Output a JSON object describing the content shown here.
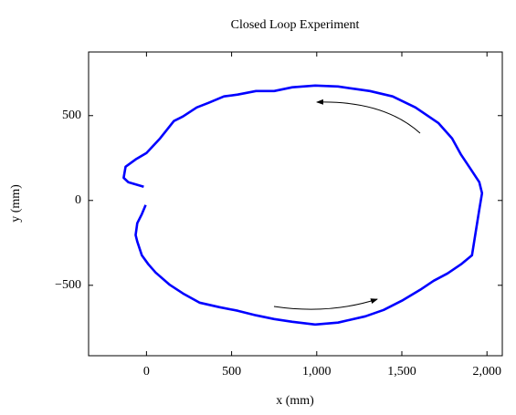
{
  "chart_data": {
    "type": "line",
    "title": "Closed Loop Experiment",
    "x_label": "x (mm)",
    "y_label": "y (mm)",
    "color": "#0000ff",
    "x": [
      -16,
      -107,
      -134,
      -123,
      -64,
      0,
      80,
      161,
      214,
      295,
      364,
      455,
      536,
      643,
      750,
      857,
      991,
      1125,
      1232,
      1312,
      1446,
      1580,
      1714,
      1795,
      1848,
      1902,
      1955,
      1971,
      1955,
      1929,
      1912,
      1848,
      1768,
      1687,
      1607,
      1500,
      1393,
      1286,
      1125,
      991,
      857,
      750,
      643,
      536,
      429,
      311,
      214,
      134,
      54,
      11,
      -27,
      -54,
      -64,
      -54,
      -27,
      -5
    ],
    "y": [
      81,
      108,
      134,
      199,
      242,
      280,
      366,
      468,
      495,
      548,
      575,
      613,
      624,
      645,
      645,
      667,
      677,
      672,
      656,
      645,
      613,
      548,
      457,
      366,
      269,
      188,
      108,
      43,
      -54,
      -215,
      -323,
      -376,
      -430,
      -473,
      -527,
      -591,
      -645,
      -683,
      -720,
      -731,
      -715,
      -699,
      -677,
      -650,
      -629,
      -602,
      -548,
      -495,
      -425,
      -376,
      -323,
      -242,
      -204,
      -134,
      -81,
      -27
    ],
    "xlim": [
      -340,
      2090
    ],
    "ylim": [
      -915,
      875
    ],
    "xticks": [
      0,
      500,
      {
        "value": 1000,
        "label": "1,000"
      },
      {
        "value": 1500,
        "label": "1,500"
      },
      {
        "value": 2000,
        "label": "2,000"
      }
    ],
    "yticks": [
      {
        "value": -500,
        "label": "−500"
      },
      0,
      500
    ]
  }
}
